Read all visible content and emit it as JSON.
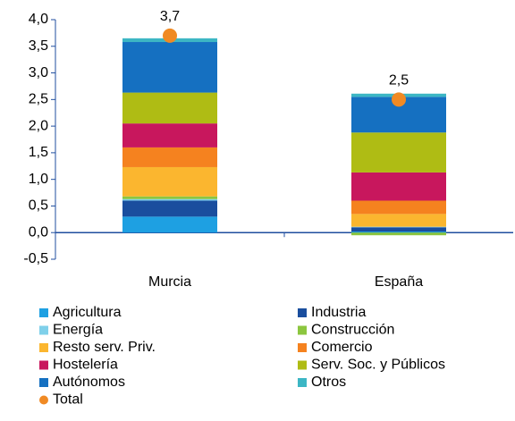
{
  "chart_data": {
    "type": "stacked-bar",
    "categories": [
      "Murcia",
      "España"
    ],
    "series": [
      {
        "name": "Agricultura",
        "color": "#1ea0e2",
        "values": [
          0.3,
          0.02
        ]
      },
      {
        "name": "Industria",
        "color": "#1a4e9e",
        "values": [
          0.3,
          0.08
        ]
      },
      {
        "name": "Energía",
        "color": "#7fd0ea",
        "values": [
          0.03,
          0.01
        ]
      },
      {
        "name": "Construcción",
        "color": "#8cc63f",
        "values": [
          0.05,
          -0.05
        ]
      },
      {
        "name": "Resto serv. Priv.",
        "color": "#fbb62f",
        "values": [
          0.55,
          0.24
        ]
      },
      {
        "name": "Comercio",
        "color": "#f5821f",
        "values": [
          0.37,
          0.25
        ]
      },
      {
        "name": "Hostelería",
        "color": "#c8175d",
        "values": [
          0.45,
          0.53
        ]
      },
      {
        "name": "Serv. Soc. y Públicos",
        "color": "#afbc14",
        "values": [
          0.58,
          0.75
        ]
      },
      {
        "name": "Autónomos",
        "color": "#1570c1",
        "values": [
          0.95,
          0.67
        ]
      },
      {
        "name": "Otros",
        "color": "#3cb6c4",
        "values": [
          0.07,
          0.06
        ]
      }
    ],
    "total": {
      "name": "Total",
      "color": "#f08a24",
      "values": [
        3.7,
        2.5
      ],
      "value_labels": [
        "3,7",
        "2,5"
      ]
    },
    "ylim": [
      -0.5,
      4.0
    ],
    "yticks": [
      {
        "value": -0.5,
        "label": "-0,5"
      },
      {
        "value": 0,
        "label": "0,0"
      },
      {
        "value": 0.5,
        "label": "0,5"
      },
      {
        "value": 1,
        "label": "1,0"
      },
      {
        "value": 1.5,
        "label": "1,5"
      },
      {
        "value": 2,
        "label": "2,0"
      },
      {
        "value": 2.5,
        "label": "2,5"
      },
      {
        "value": 3,
        "label": "3,0"
      },
      {
        "value": 3.5,
        "label": "3,5"
      },
      {
        "value": 4,
        "label": "4,0"
      }
    ]
  }
}
